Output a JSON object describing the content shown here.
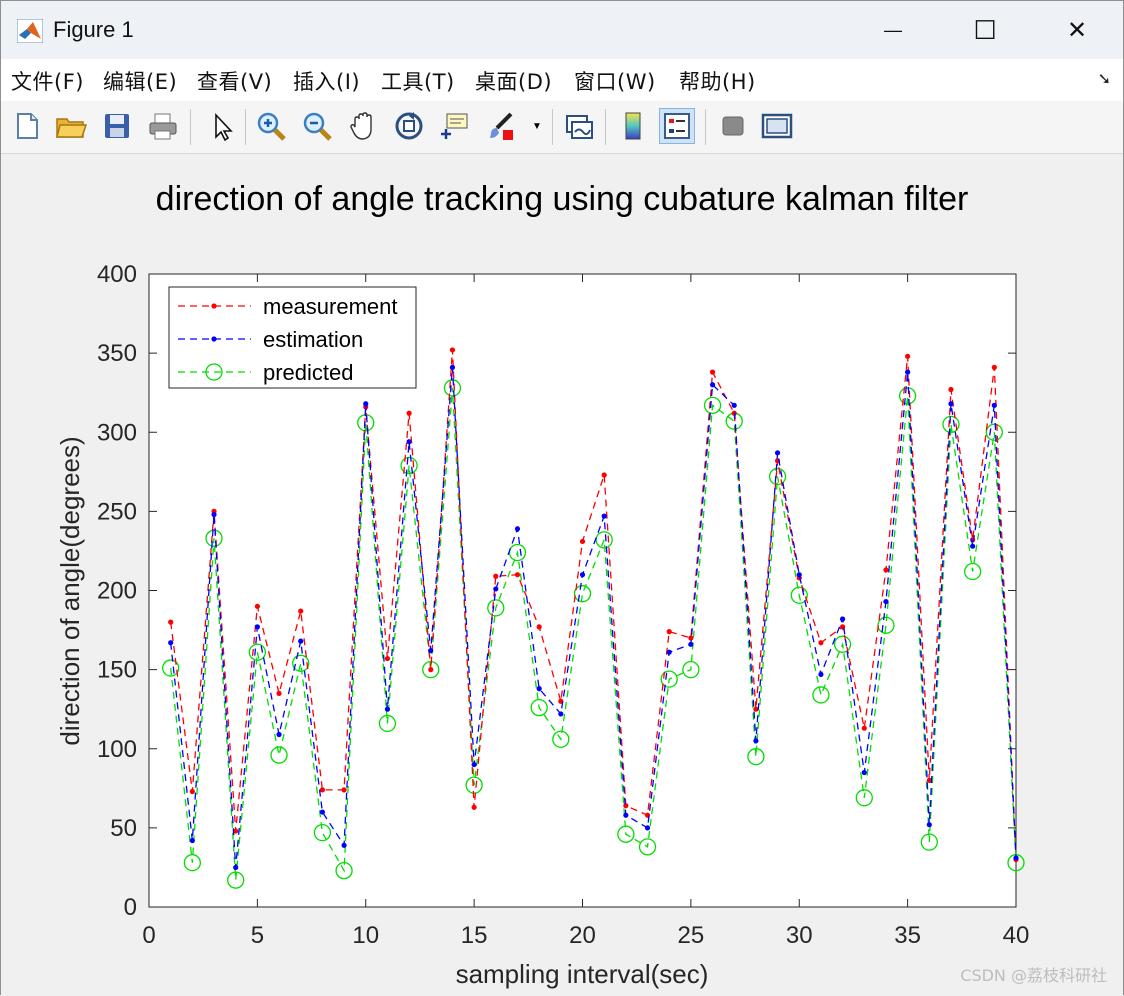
{
  "window": {
    "title": "Figure 1",
    "controls": {
      "minimize": "—",
      "maximize": "☐",
      "close": "✕"
    }
  },
  "menu": {
    "items": [
      "文件(F)",
      "编辑(E)",
      "查看(V)",
      "插入(I)",
      "工具(T)",
      "桌面(D)",
      "窗口(W)",
      "帮助(H)"
    ],
    "overflow_icon": "undock-arrow-icon"
  },
  "toolbar": {
    "icons": [
      "new-figure-icon",
      "open-file-icon",
      "save-icon",
      "print-icon",
      "select-arrow-icon",
      "zoom-in-icon",
      "zoom-out-icon",
      "pan-hand-icon",
      "rotate-3d-icon",
      "data-cursor-icon",
      "brush-icon",
      "brush-dropdown-icon",
      "link-plot-icon",
      "colorbar-icon",
      "legend-icon",
      "hide-plot-tools-icon",
      "show-plot-tools-icon"
    ]
  },
  "colors": {
    "measurement": "#ff0000",
    "estimation": "#0000ff",
    "predicted": "#00dd00"
  },
  "watermark": "CSDN @荔枝科研社",
  "chart_data": {
    "type": "line",
    "title": "direction of angle tracking using cubature kalman filter",
    "xlabel": "sampling interval(sec)",
    "ylabel": "direction of angle(degrees)",
    "xlim": [
      0,
      40
    ],
    "ylim": [
      0,
      400
    ],
    "xticks": [
      0,
      5,
      10,
      15,
      20,
      25,
      30,
      35,
      40
    ],
    "yticks": [
      0,
      50,
      100,
      150,
      200,
      250,
      300,
      350,
      400
    ],
    "grid": false,
    "legend_position": "top-left",
    "x": [
      1,
      2,
      3,
      4,
      5,
      6,
      7,
      8,
      9,
      10,
      11,
      12,
      13,
      14,
      15,
      16,
      17,
      18,
      19,
      20,
      21,
      22,
      23,
      24,
      25,
      26,
      27,
      28,
      29,
      30,
      31,
      32,
      33,
      34,
      35,
      36,
      37,
      38,
      39,
      40
    ],
    "series": [
      {
        "name": "measurement",
        "style": "dashed-dot",
        "values": [
          180,
          73,
          250,
          48,
          190,
          135,
          187,
          74,
          74,
          316,
          157,
          312,
          150,
          352,
          63,
          209,
          210,
          177,
          130,
          231,
          273,
          64,
          58,
          174,
          170,
          338,
          312,
          125,
          282,
          208,
          167,
          177,
          113,
          213,
          348,
          80,
          327,
          232,
          341,
          30
        ]
      },
      {
        "name": "estimation",
        "style": "dashed-dot",
        "values": [
          167,
          42,
          248,
          25,
          177,
          109,
          168,
          60,
          39,
          318,
          125,
          294,
          162,
          341,
          90,
          201,
          239,
          138,
          122,
          210,
          247,
          58,
          50,
          161,
          166,
          330,
          317,
          105,
          287,
          210,
          147,
          182,
          85,
          193,
          338,
          52,
          318,
          228,
          317,
          31
        ]
      },
      {
        "name": "predicted",
        "style": "dashed-circle",
        "values": [
          151,
          28,
          233,
          17,
          161,
          96,
          154,
          47,
          23,
          306,
          116,
          279,
          150,
          328,
          77,
          189,
          224,
          126,
          106,
          198,
          232,
          46,
          38,
          144,
          150,
          317,
          307,
          95,
          272,
          197,
          134,
          166,
          69,
          178,
          323,
          41,
          305,
          212,
          300,
          28
        ]
      }
    ]
  }
}
